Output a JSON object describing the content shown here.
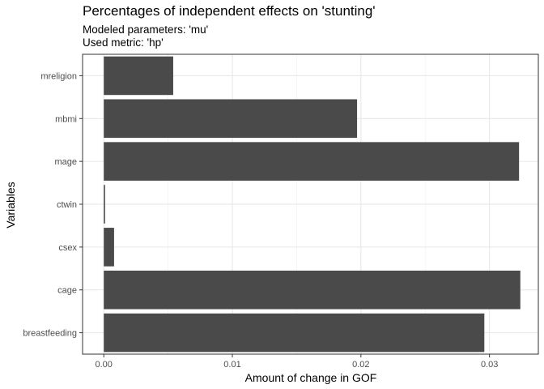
{
  "chart_data": {
    "type": "bar",
    "orientation": "horizontal",
    "title": "Percentages of independent effects on 'stunting'",
    "subtitle_lines": [
      "Modeled parameters: 'mu'",
      "Used metric: 'hp'"
    ],
    "xlabel": "Amount of change in GOF",
    "ylabel": "Variables",
    "categories": [
      "breastfeeding",
      "cage",
      "csex",
      "ctwin",
      "mage",
      "mbmi",
      "mreligion"
    ],
    "values": [
      0.0296,
      0.0324,
      0.0008,
      0.0001,
      0.0323,
      0.0197,
      0.0054
    ],
    "xlim": [
      -0.00165,
      0.0338
    ],
    "x_ticks": [
      "0.00",
      "0.01",
      "0.02",
      "0.03"
    ],
    "x_tick_values": [
      0,
      0.01,
      0.02,
      0.03
    ],
    "grid": true,
    "bar_color": "#4a4a4a"
  }
}
